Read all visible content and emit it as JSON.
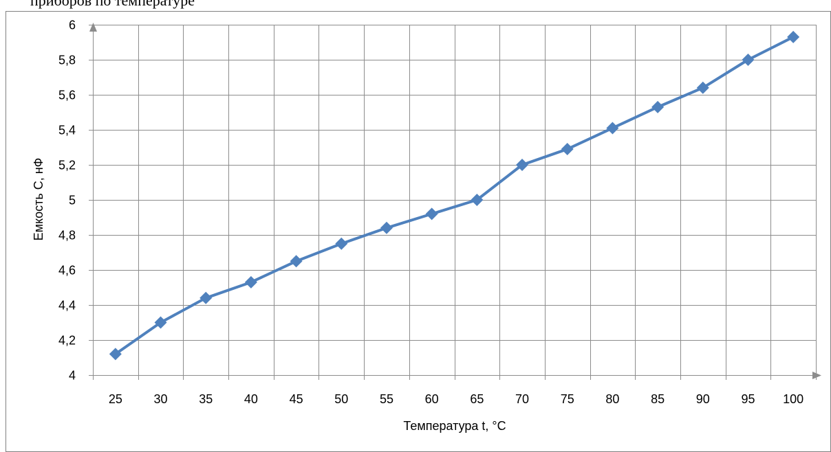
{
  "header_text_partial": "приборов по температуре",
  "chart_data": {
    "type": "line",
    "title": "",
    "xlabel": "Температура t, °С",
    "ylabel": "Емкость С, нФ",
    "categories": [
      "25",
      "30",
      "35",
      "40",
      "45",
      "50",
      "55",
      "60",
      "65",
      "70",
      "75",
      "80",
      "85",
      "90",
      "95",
      "100"
    ],
    "y_ticks": [
      "4",
      "4,2",
      "4,4",
      "4,6",
      "4,8",
      "5",
      "5,2",
      "5,4",
      "5,6",
      "5,8",
      "6"
    ],
    "ylim": [
      4,
      6
    ],
    "grid": true,
    "legend": "none",
    "series": [
      {
        "color": "#4f81bd",
        "marker": "diamond",
        "values": [
          4.12,
          4.3,
          4.44,
          4.53,
          4.65,
          4.75,
          4.84,
          4.92,
          5.0,
          5.2,
          5.29,
          5.41,
          5.53,
          5.64,
          5.8,
          5.93
        ]
      }
    ]
  }
}
